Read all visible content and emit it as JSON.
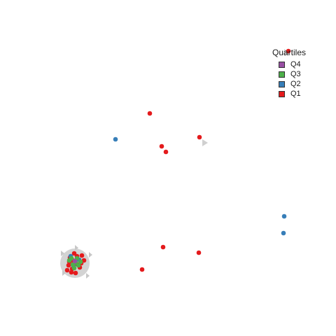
{
  "chart_data": {
    "type": "scatter",
    "title": "",
    "xlabel": "",
    "ylabel": "",
    "axes_visible": false,
    "grid": false,
    "legend": {
      "title": "Quartiles",
      "placement": "top-right",
      "entries": [
        {
          "name": "Q4",
          "color": "#984ea3"
        },
        {
          "name": "Q3",
          "color": "#4daf4a"
        },
        {
          "name": "Q2",
          "color": "#377eb8"
        },
        {
          "name": "Q1",
          "color": "#e41a1c"
        }
      ]
    },
    "gray_arrows": [
      {
        "x1": 285,
        "y1": 196,
        "x2": 295,
        "y2": 204
      },
      {
        "x1": 409,
        "y1": 72,
        "x2": 412,
        "y2": 75
      }
    ],
    "cluster": {
      "cx": 107,
      "cy": 376,
      "r": 21,
      "fill": "#d3d3d3"
    },
    "series": [
      {
        "name": "Q1",
        "color": "#e41a1c",
        "points": [
          [
            214,
            162
          ],
          [
            231,
            209
          ],
          [
            237,
            217
          ],
          [
            285,
            196
          ],
          [
            233,
            353
          ],
          [
            284,
            361
          ],
          [
            203,
            385
          ],
          [
            412,
            73
          ],
          [
            100,
            368
          ],
          [
            104,
            372
          ],
          [
            110,
            366
          ],
          [
            98,
            379
          ],
          [
            103,
            384
          ],
          [
            114,
            382
          ],
          [
            120,
            372
          ],
          [
            108,
            390
          ],
          [
            96,
            386
          ],
          [
            117,
            365
          ],
          [
            106,
            362
          ],
          [
            111,
            378
          ],
          [
            99,
            374
          ],
          [
            116,
            376
          ],
          [
            102,
            389
          ]
        ]
      },
      {
        "name": "Q2",
        "color": "#377eb8",
        "points": [
          [
            165,
            199
          ],
          [
            406,
            309
          ],
          [
            405,
            333
          ],
          [
            105,
            380
          ],
          [
            113,
            371
          ],
          [
            101,
            366
          ]
        ]
      },
      {
        "name": "Q3",
        "color": "#4daf4a",
        "points": [
          [
            102,
            369
          ],
          [
            108,
            375
          ],
          [
            112,
            379
          ],
          [
            106,
            383
          ],
          [
            110,
            369
          ],
          [
            104,
            378
          ],
          [
            115,
            374
          ],
          [
            99,
            372
          ]
        ]
      },
      {
        "name": "Q4",
        "color": "#984ea3",
        "points": [
          [
            107,
            373
          ]
        ]
      }
    ]
  }
}
